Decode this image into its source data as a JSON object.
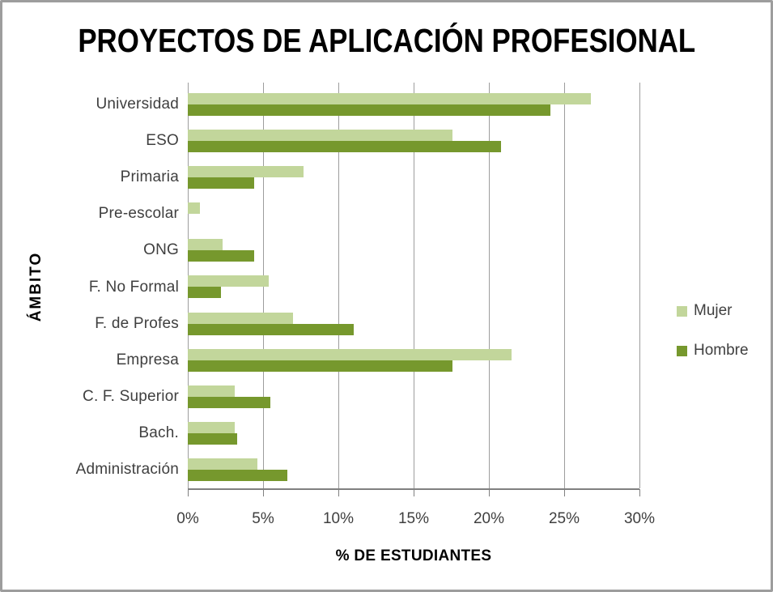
{
  "chart_data": {
    "type": "bar",
    "orientation": "horizontal",
    "title": "PROYECTOS DE APLICACIÓN PROFESIONAL",
    "xlabel": "% DE ESTUDIANTES",
    "ylabel": "ÁMBITO",
    "categories": [
      "Universidad",
      "ESO",
      "Primaria",
      "Pre-escolar",
      "ONG",
      "F. No Formal",
      "F. de Profes",
      "Empresa",
      "C. F. Superior",
      "Bach.",
      "Administración"
    ],
    "series": [
      {
        "name": "Mujer",
        "color": "#C2D69B",
        "values": [
          26.8,
          17.6,
          7.7,
          0.8,
          2.3,
          5.4,
          7.0,
          21.5,
          3.1,
          3.1,
          4.6
        ]
      },
      {
        "name": "Hombre",
        "color": "#76982D",
        "values": [
          24.1,
          20.8,
          4.4,
          0.0,
          4.4,
          2.2,
          11.0,
          17.6,
          5.5,
          3.3,
          6.6
        ]
      }
    ],
    "x_ticks": [
      "0%",
      "5%",
      "10%",
      "15%",
      "20%",
      "25%",
      "30%"
    ],
    "xlim": [
      0,
      30
    ],
    "grid": true,
    "legend_position": "right",
    "colors": {
      "gridline": "#9d9d9d",
      "axis_line": "#808080",
      "tick_label": "#3f3f3f",
      "frame_border": "#9d9d9d",
      "background": "#ffffff"
    }
  }
}
